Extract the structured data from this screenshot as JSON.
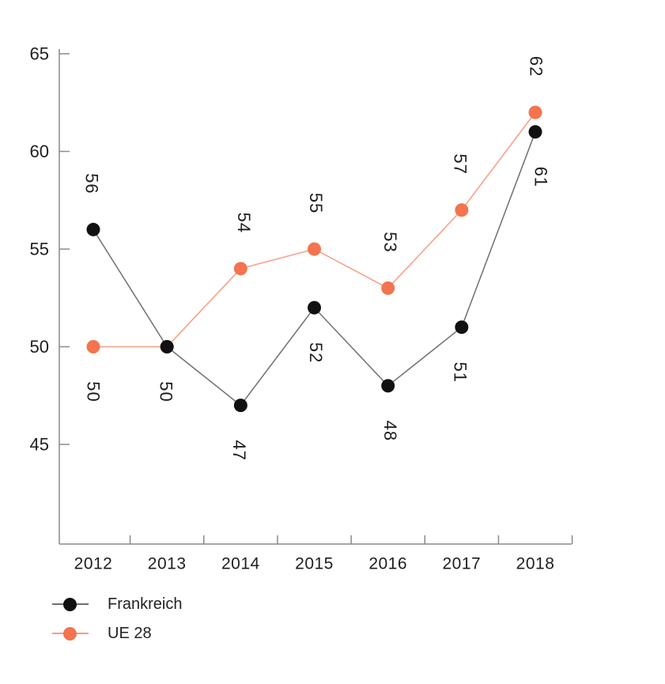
{
  "chart_data": {
    "type": "line",
    "title": "",
    "xlabel": "",
    "ylabel": "",
    "categories": [
      "2012",
      "2013",
      "2014",
      "2015",
      "2016",
      "2017",
      "2018"
    ],
    "y_ticks": [
      65,
      60,
      55,
      50,
      45
    ],
    "ylim": [
      40,
      65
    ],
    "grid": false,
    "legend_position": "bottom-left",
    "axis_color": "#8a8a8a",
    "label_color": "#1e1e1e",
    "series": [
      {
        "name": "Frankreich",
        "marker_color": "#111111",
        "line_color": "#6f6f6f",
        "values": [
          56,
          50,
          47,
          52,
          48,
          51,
          61
        ],
        "point_labels": [
          {
            "text": "56",
            "side": "above",
            "dx": -2
          },
          {
            "text": "50",
            "side": "below",
            "dx": -1
          },
          {
            "text": "47",
            "side": "below",
            "dx": -2
          },
          {
            "text": "52",
            "side": "below",
            "dx": 2
          },
          {
            "text": "48",
            "side": "below",
            "dx": 3
          },
          {
            "text": "51",
            "side": "below",
            "dx": -2
          },
          {
            "text": "61",
            "side": "below",
            "dx": 7
          }
        ]
      },
      {
        "name": "UE 28",
        "marker_color": "#F3744E",
        "line_color": "#F89C82",
        "values": [
          50,
          50,
          54,
          55,
          53,
          57,
          62
        ],
        "point_labels": [
          {
            "text": "50",
            "side": "below",
            "dx": 0
          },
          null,
          {
            "text": "54",
            "side": "above",
            "dx": 4
          },
          {
            "text": "55",
            "side": "above",
            "dx": 2
          },
          {
            "text": "53",
            "side": "above",
            "dx": 3
          },
          {
            "text": "57",
            "side": "above",
            "dx": -2
          },
          {
            "text": "62",
            "side": "above",
            "dx": 1
          }
        ]
      }
    ]
  },
  "legend": {
    "items": [
      {
        "label": "Frankreich"
      },
      {
        "label": "UE 28"
      }
    ]
  }
}
